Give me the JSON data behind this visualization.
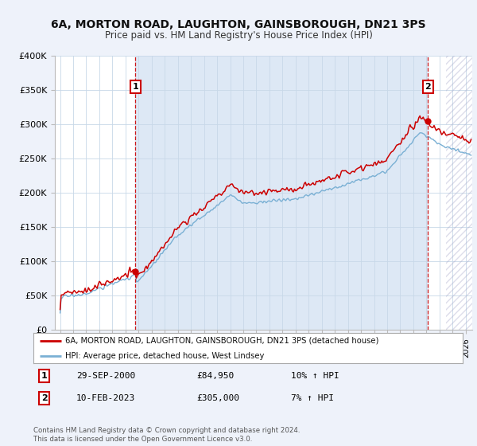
{
  "title": "6A, MORTON ROAD, LAUGHTON, GAINSBOROUGH, DN21 3PS",
  "subtitle": "Price paid vs. HM Land Registry's House Price Index (HPI)",
  "red_label": "6A, MORTON ROAD, LAUGHTON, GAINSBOROUGH, DN21 3PS (detached house)",
  "blue_label": "HPI: Average price, detached house, West Lindsey",
  "annotation1": {
    "num": "1",
    "date": "29-SEP-2000",
    "price": "£84,950",
    "pct": "10% ↑ HPI"
  },
  "annotation2": {
    "num": "2",
    "date": "10-FEB-2023",
    "price": "£305,000",
    "pct": "7% ↑ HPI"
  },
  "footer": "Contains HM Land Registry data © Crown copyright and database right 2024.\nThis data is licensed under the Open Government Licence v3.0.",
  "ylim": [
    0,
    400000
  ],
  "yticks": [
    0,
    50000,
    100000,
    150000,
    200000,
    250000,
    300000,
    350000,
    400000
  ],
  "ytick_labels": [
    "£0",
    "£50K",
    "£100K",
    "£150K",
    "£200K",
    "£250K",
    "£300K",
    "£350K",
    "£400K"
  ],
  "bg_color": "#eef2fa",
  "plot_bg": "#ffffff",
  "shade_color": "#dde8f5",
  "red_color": "#cc0000",
  "blue_color": "#7ab0d4",
  "marker1_x": 2000.75,
  "marker1_y": 84950,
  "marker2_x": 2023.12,
  "marker2_y": 305000,
  "xlim_start": 1994.6,
  "xlim_end": 2026.5,
  "shade_start": 2000.75,
  "shade_end": 2023.12,
  "hatch_start": 2024.5
}
